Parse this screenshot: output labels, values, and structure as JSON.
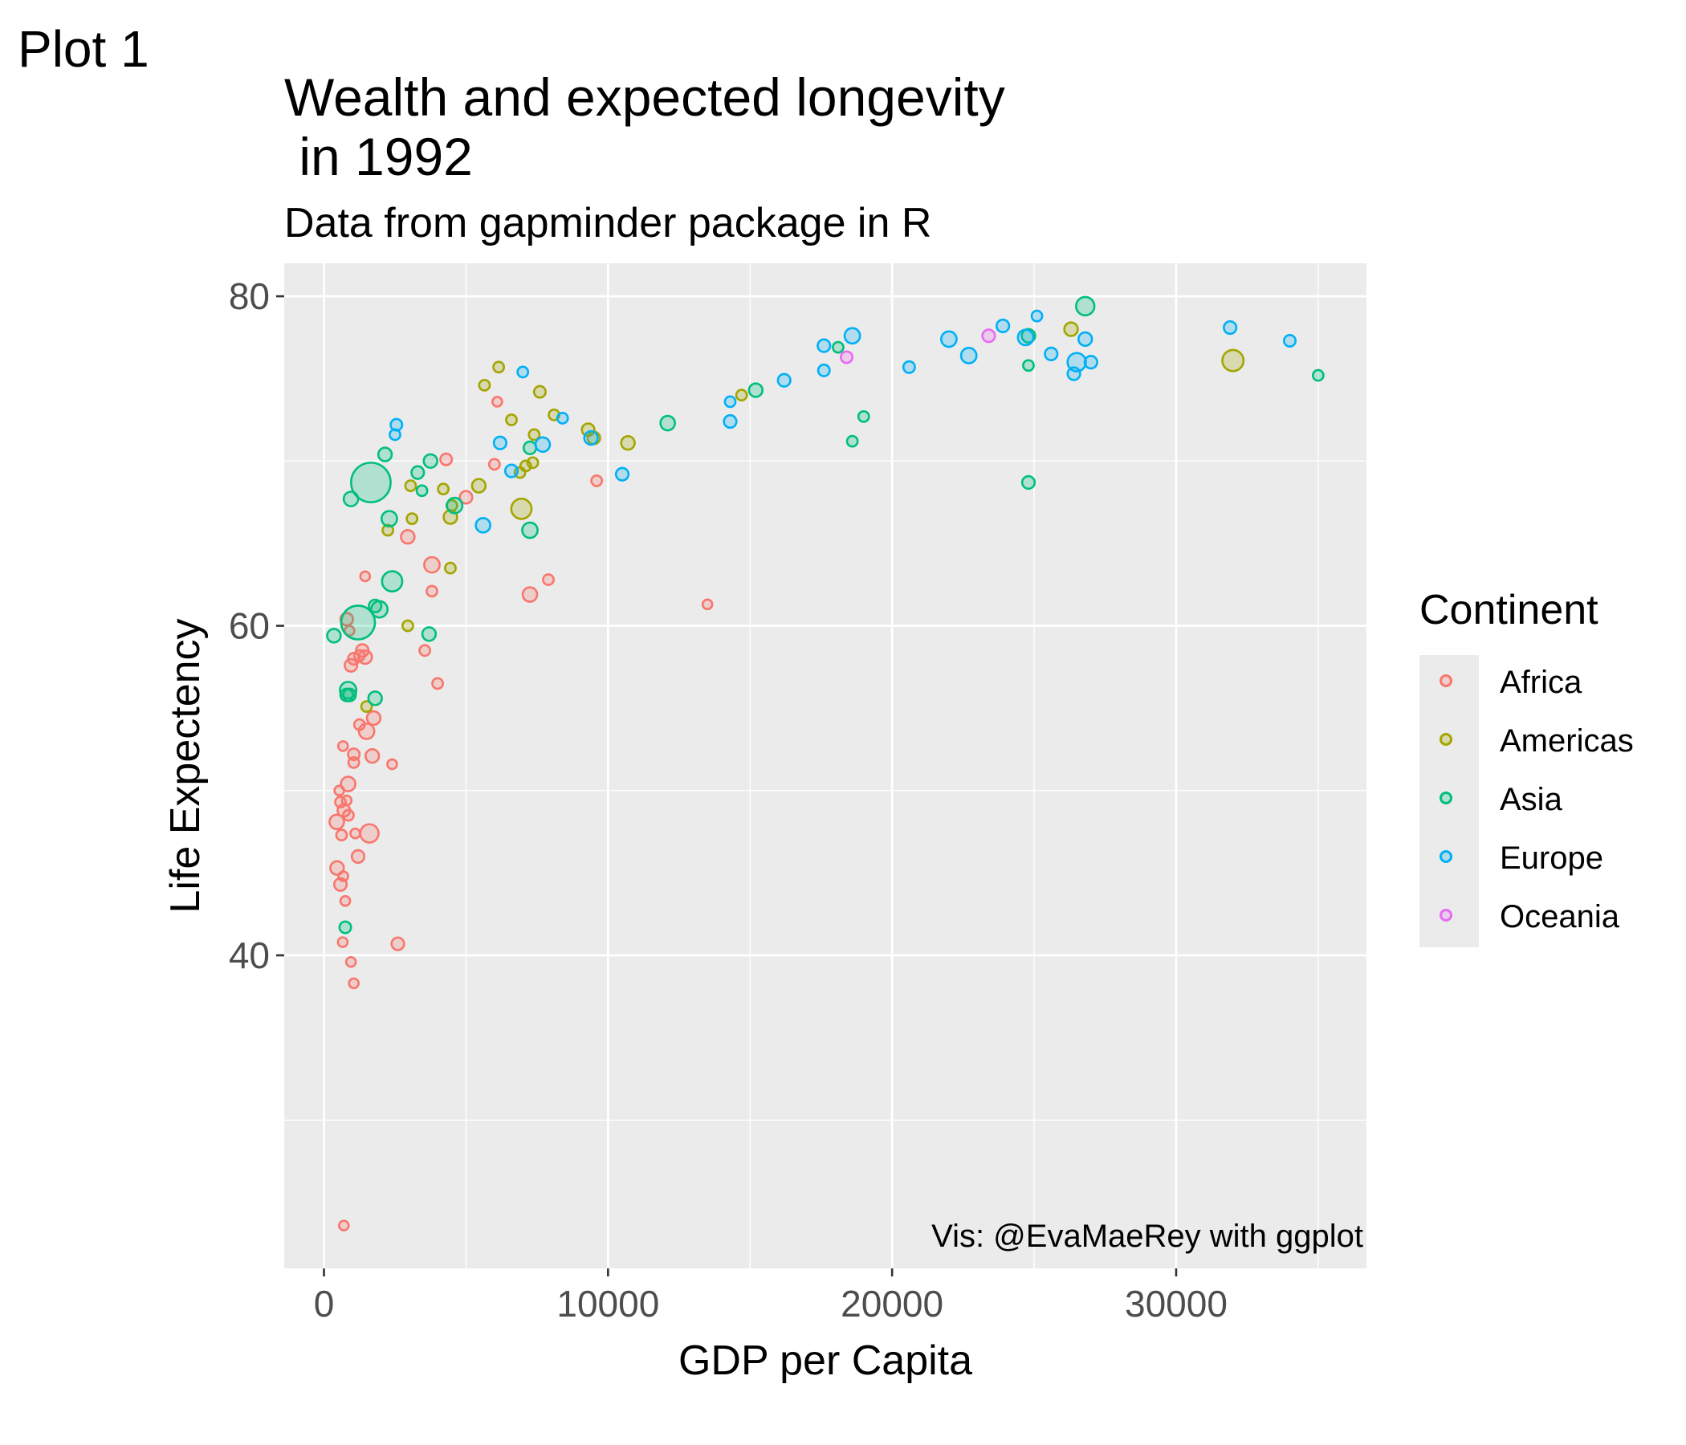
{
  "tag": "Plot 1",
  "title": "Wealth and expected longevity\n in 1992",
  "subtitle": "Data from gapminder package in R",
  "caption": "Vis: @EvaMaeRey with ggplot",
  "chart_data": {
    "type": "scatter",
    "xlabel": "GDP per Capita",
    "ylabel": "Life Expectency",
    "xlim": [
      -1400,
      36700
    ],
    "ylim": [
      21,
      82
    ],
    "xticks": [
      0,
      10000,
      20000,
      30000
    ],
    "xtick_labels": [
      "0",
      "10000",
      "20000",
      "30000"
    ],
    "yticks": [
      40,
      60,
      80
    ],
    "ytick_labels": [
      "40",
      "60",
      "80"
    ],
    "xminor": [
      5000,
      15000,
      25000,
      35000
    ],
    "yminor": [
      30,
      50,
      70
    ],
    "grid": true,
    "legend": {
      "title": "Continent",
      "placement": "right",
      "entries": [
        {
          "name": "Africa",
          "color": "#F8766D"
        },
        {
          "name": "Americas",
          "color": "#A3A500"
        },
        {
          "name": "Asia",
          "color": "#00BF7D"
        },
        {
          "name": "Europe",
          "color": "#00B0F6"
        },
        {
          "name": "Oceania",
          "color": "#E76BF3"
        }
      ]
    },
    "series": [
      {
        "name": "Africa",
        "color": "#F8766D",
        "points": [
          [
            700,
            23.6,
            1
          ],
          [
            1050,
            38.3,
            1
          ],
          [
            950,
            39.6,
            1
          ],
          [
            660,
            40.8,
            1
          ],
          [
            2600,
            40.7,
            1.3
          ],
          [
            750,
            43.3,
            1
          ],
          [
            580,
            44.3,
            1.3
          ],
          [
            680,
            44.8,
            1
          ],
          [
            460,
            45.3,
            1.4
          ],
          [
            1200,
            46,
            1.3
          ],
          [
            1600,
            47.4,
            1.9
          ],
          [
            620,
            47.3,
            1.1
          ],
          [
            1100,
            47.4,
            1
          ],
          [
            450,
            48.1,
            1.5
          ],
          [
            860,
            48.5,
            1.1
          ],
          [
            700,
            48.8,
            1.3
          ],
          [
            580,
            49.3,
            1.1
          ],
          [
            800,
            49.4,
            1
          ],
          [
            540,
            50,
            1
          ],
          [
            850,
            50.4,
            1.5
          ],
          [
            1050,
            51.7,
            1.1
          ],
          [
            1050,
            52.2,
            1.2
          ],
          [
            2400,
            51.6,
            1
          ],
          [
            1700,
            52.1,
            1.4
          ],
          [
            670,
            52.7,
            1
          ],
          [
            1500,
            53.6,
            1.6
          ],
          [
            1250,
            54,
            1.1
          ],
          [
            1750,
            54.4,
            1.4
          ],
          [
            4000,
            56.5,
            1.1
          ],
          [
            950,
            57.6,
            1.3
          ],
          [
            1450,
            58.1,
            1.4
          ],
          [
            1050,
            58,
            1.2
          ],
          [
            1250,
            58.2,
            1.1
          ],
          [
            3550,
            58.5,
            1.1
          ],
          [
            1350,
            58.5,
            1.3
          ],
          [
            900,
            59.7,
            1
          ],
          [
            800,
            60.4,
            1.3
          ],
          [
            3800,
            62.1,
            1.1
          ],
          [
            1450,
            63,
            1
          ],
          [
            3800,
            63.7,
            1.6
          ],
          [
            7900,
            62.8,
            1.1
          ],
          [
            7250,
            61.9,
            1.5
          ],
          [
            13500,
            61.3,
            1
          ],
          [
            2950,
            65.4,
            1.4
          ],
          [
            5000,
            67.8,
            1.3
          ],
          [
            4300,
            70.1,
            1.2
          ],
          [
            6000,
            69.8,
            1.1
          ],
          [
            9600,
            68.8,
            1.1
          ],
          [
            6100,
            73.6,
            1
          ]
        ]
      },
      {
        "name": "Americas",
        "color": "#A3A500",
        "points": [
          [
            1500,
            55.1,
            1.1
          ],
          [
            2950,
            60,
            1.1
          ],
          [
            4450,
            63.5,
            1.1
          ],
          [
            2250,
            65.8,
            1.1
          ],
          [
            3100,
            66.5,
            1.1
          ],
          [
            4450,
            66.6,
            1.4
          ],
          [
            4500,
            67.3,
            1.1
          ],
          [
            4200,
            68.3,
            1.1
          ],
          [
            3050,
            68.5,
            1.1
          ],
          [
            5450,
            68.5,
            1.4
          ],
          [
            6950,
            67.1,
            2.1
          ],
          [
            6900,
            69.3,
            1.1
          ],
          [
            7100,
            69.7,
            1.1
          ],
          [
            7350,
            69.9,
            1.1
          ],
          [
            7400,
            71.6,
            1.1
          ],
          [
            6600,
            72.5,
            1.1
          ],
          [
            8100,
            72.8,
            1.1
          ],
          [
            9300,
            71.9,
            1.3
          ],
          [
            9500,
            71.4,
            1.3
          ],
          [
            10700,
            71.1,
            1.4
          ],
          [
            5650,
            74.6,
            1.1
          ],
          [
            6150,
            75.7,
            1.1
          ],
          [
            7600,
            74.2,
            1.2
          ],
          [
            14700,
            74,
            1.1
          ],
          [
            26300,
            78,
            1.4
          ],
          [
            32000,
            76.1,
            2.2
          ]
        ]
      },
      {
        "name": "Asia",
        "color": "#00BF7D",
        "points": [
          [
            750,
            41.7,
            1.2
          ],
          [
            350,
            59.4,
            1.4
          ],
          [
            1200,
            60.2,
            3.5
          ],
          [
            800,
            55.8,
            1.3
          ],
          [
            900,
            55.8,
            1.3
          ],
          [
            850,
            56.1,
            1.7
          ],
          [
            1800,
            55.6,
            1.4
          ],
          [
            1800,
            61.2,
            1.3
          ],
          [
            1950,
            61,
            1.7
          ],
          [
            3700,
            59.5,
            1.4
          ],
          [
            2400,
            62.7,
            2.1
          ],
          [
            2300,
            66.5,
            1.6
          ],
          [
            4600,
            67.3,
            1.6
          ],
          [
            1650,
            68.7,
            4.1
          ],
          [
            950,
            67.7,
            1.5
          ],
          [
            3450,
            68.2,
            1.1
          ],
          [
            3300,
            69.3,
            1.3
          ],
          [
            3750,
            70,
            1.4
          ],
          [
            2150,
            70.4,
            1.4
          ],
          [
            7250,
            65.8,
            1.6
          ],
          [
            7250,
            70.8,
            1.3
          ],
          [
            12100,
            72.3,
            1.5
          ],
          [
            15200,
            74.3,
            1.4
          ],
          [
            18100,
            76.9,
            1.1
          ],
          [
            19000,
            72.7,
            1.1
          ],
          [
            18600,
            71.2,
            1.1
          ],
          [
            24800,
            75.8,
            1.1
          ],
          [
            24800,
            68.7,
            1.3
          ],
          [
            24800,
            77.6,
            1.4
          ],
          [
            26800,
            79.4,
            1.9
          ],
          [
            35000,
            75.2,
            1.1
          ]
        ]
      },
      {
        "name": "Europe",
        "color": "#00B0F6",
        "points": [
          [
            2500,
            71.6,
            1.1
          ],
          [
            2550,
            72.2,
            1.2
          ],
          [
            6200,
            71.1,
            1.3
          ],
          [
            6600,
            69.4,
            1.3
          ],
          [
            5600,
            66.1,
            1.5
          ],
          [
            7700,
            71,
            1.5
          ],
          [
            8400,
            72.6,
            1.1
          ],
          [
            9400,
            71.4,
            1.4
          ],
          [
            7000,
            75.4,
            1.1
          ],
          [
            10500,
            69.2,
            1.3
          ],
          [
            14300,
            73.6,
            1.1
          ],
          [
            14300,
            72.4,
            1.3
          ],
          [
            16200,
            74.9,
            1.3
          ],
          [
            17600,
            75.5,
            1.2
          ],
          [
            17600,
            77,
            1.3
          ],
          [
            18600,
            77.6,
            1.6
          ],
          [
            20600,
            75.7,
            1.2
          ],
          [
            22000,
            77.4,
            1.6
          ],
          [
            22700,
            76.4,
            1.6
          ],
          [
            23900,
            78.2,
            1.3
          ],
          [
            24700,
            77.5,
            1.6
          ],
          [
            25600,
            76.5,
            1.3
          ],
          [
            25100,
            78.8,
            1.1
          ],
          [
            26400,
            75.3,
            1.3
          ],
          [
            26500,
            76,
            1.9
          ],
          [
            26800,
            77.4,
            1.4
          ],
          [
            27000,
            76,
            1.3
          ],
          [
            31900,
            78.1,
            1.3
          ],
          [
            34000,
            77.3,
            1.2
          ]
        ]
      },
      {
        "name": "Oceania",
        "color": "#E76BF3",
        "points": [
          [
            18400,
            76.3,
            1.2
          ],
          [
            23400,
            77.6,
            1.3
          ]
        ]
      }
    ]
  }
}
